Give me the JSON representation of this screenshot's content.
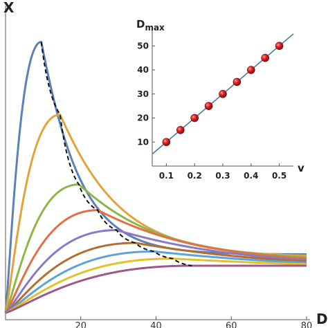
{
  "chart_data": [
    {
      "type": "line",
      "xlabel": "D",
      "ylabel": "X",
      "xlim": [
        0,
        80
      ],
      "x_ticks": [
        "20",
        "40",
        "60",
        "80"
      ],
      "x_tick_values": [
        20,
        40,
        60,
        80
      ],
      "ylim": [
        0,
        1
      ],
      "grid": false,
      "series": [
        {
          "color": "#5b81b8",
          "peak_x": 9.5,
          "peak_y": 0.95,
          "end_y": 0.205
        },
        {
          "color": "#e3a33a",
          "peak_x": 14.5,
          "peak_y": 0.695,
          "end_y": 0.2
        },
        {
          "color": "#8fb447",
          "peak_x": 19.5,
          "peak_y": 0.45,
          "end_y": 0.195
        },
        {
          "color": "#e56f43",
          "peak_x": 24.5,
          "peak_y": 0.36,
          "end_y": 0.19
        },
        {
          "color": "#8a79c6",
          "peak_x": 29.5,
          "peak_y": 0.29,
          "end_y": 0.185
        },
        {
          "color": "#b06f2f",
          "peak_x": 34.5,
          "peak_y": 0.245,
          "end_y": 0.18
        },
        {
          "color": "#5fa3d6",
          "peak_x": 39.5,
          "peak_y": 0.215,
          "end_y": 0.175
        },
        {
          "color": "#e3c12c",
          "peak_x": 44.5,
          "peak_y": 0.19,
          "end_y": 0.17
        },
        {
          "color": "#a0558d",
          "peak_x": 49.5,
          "peak_y": 0.165,
          "end_y": 0.165
        }
      ],
      "maxima_curve": {
        "style": "dashed",
        "color": "#111111"
      }
    },
    {
      "type": "scatter",
      "xlabel": "v",
      "ylabel": "D",
      "ylabel_sub": "max",
      "xlim": [
        0.05,
        0.55
      ],
      "ylim": [
        0,
        57
      ],
      "x_ticks": [
        "0.1",
        "0.2",
        "0.3",
        "0.4",
        "0.5"
      ],
      "x_tick_values": [
        0.1,
        0.2,
        0.3,
        0.4,
        0.5
      ],
      "y_ticks": [
        "10",
        "20",
        "30",
        "40",
        "50"
      ],
      "y_tick_values": [
        10,
        20,
        30,
        40,
        50
      ],
      "x": [
        0.1,
        0.15,
        0.2,
        0.25,
        0.3,
        0.35,
        0.4,
        0.45,
        0.5
      ],
      "y": [
        10,
        15,
        20,
        25,
        30,
        35,
        40,
        45,
        50
      ],
      "fit_line": {
        "slope": 100,
        "intercept": 0,
        "color": "#4a78a8"
      },
      "marker_color": "#d42020"
    }
  ]
}
